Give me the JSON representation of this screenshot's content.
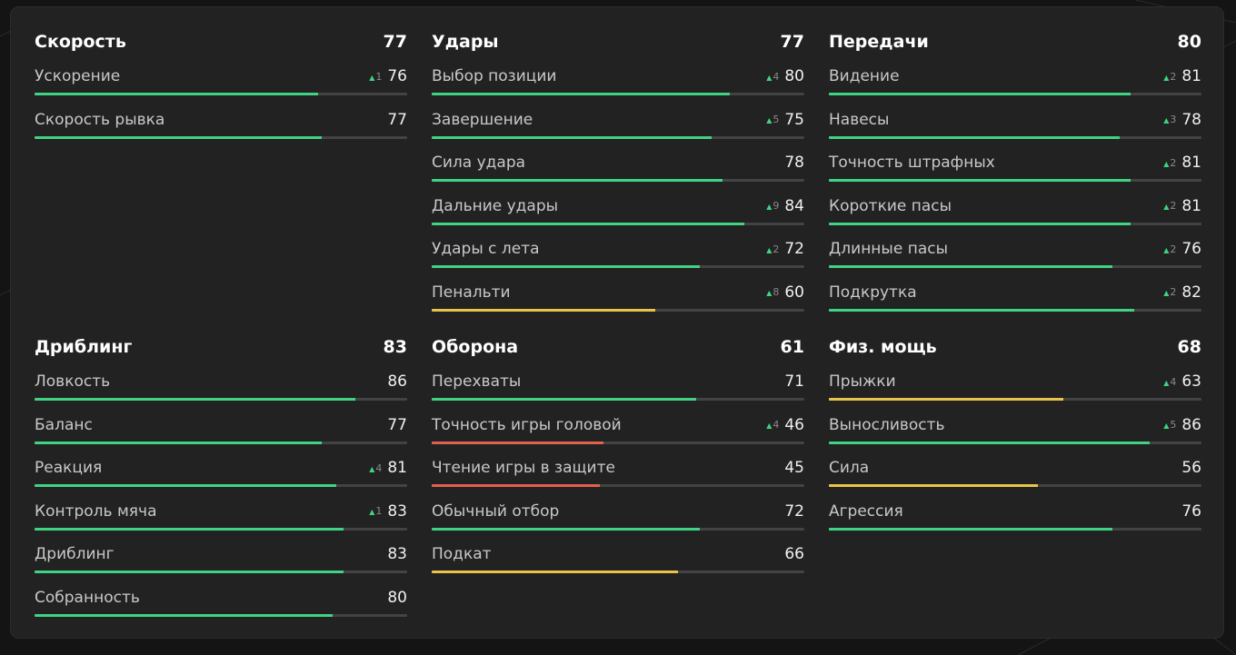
{
  "colors": {
    "high": "#3fd383",
    "mid": "#e9c44b",
    "low": "#e3614c"
  },
  "groups": [
    {
      "title": "Скорость",
      "value": "77",
      "stats": [
        {
          "name": "Ускорение",
          "delta": "1",
          "value": "76",
          "level": 0.76,
          "color": "high"
        },
        {
          "name": "Скорость рывка",
          "delta": "",
          "value": "77",
          "level": 0.77,
          "color": "high"
        }
      ]
    },
    {
      "title": "Удары",
      "value": "77",
      "stats": [
        {
          "name": "Выбор позиции",
          "delta": "4",
          "value": "80",
          "level": 0.8,
          "color": "high"
        },
        {
          "name": "Завершение",
          "delta": "5",
          "value": "75",
          "level": 0.75,
          "color": "high"
        },
        {
          "name": "Сила удара",
          "delta": "",
          "value": "78",
          "level": 0.78,
          "color": "high"
        },
        {
          "name": "Дальние удары",
          "delta": "9",
          "value": "84",
          "level": 0.84,
          "color": "high"
        },
        {
          "name": "Удары с лета",
          "delta": "2",
          "value": "72",
          "level": 0.72,
          "color": "high"
        },
        {
          "name": "Пенальти",
          "delta": "8",
          "value": "60",
          "level": 0.6,
          "color": "mid"
        }
      ]
    },
    {
      "title": "Передачи",
      "value": "80",
      "stats": [
        {
          "name": "Видение",
          "delta": "2",
          "value": "81",
          "level": 0.81,
          "color": "high"
        },
        {
          "name": "Навесы",
          "delta": "3",
          "value": "78",
          "level": 0.78,
          "color": "high"
        },
        {
          "name": "Точность штрафных",
          "delta": "2",
          "value": "81",
          "level": 0.81,
          "color": "high"
        },
        {
          "name": "Короткие пасы",
          "delta": "2",
          "value": "81",
          "level": 0.81,
          "color": "high"
        },
        {
          "name": "Длинные пасы",
          "delta": "2",
          "value": "76",
          "level": 0.76,
          "color": "high"
        },
        {
          "name": "Подкрутка",
          "delta": "2",
          "value": "82",
          "level": 0.82,
          "color": "high"
        }
      ]
    },
    {
      "title": "Дриблинг",
      "value": "83",
      "stats": [
        {
          "name": "Ловкость",
          "delta": "",
          "value": "86",
          "level": 0.86,
          "color": "high"
        },
        {
          "name": "Баланс",
          "delta": "",
          "value": "77",
          "level": 0.77,
          "color": "high"
        },
        {
          "name": "Реакция",
          "delta": "4",
          "value": "81",
          "level": 0.81,
          "color": "high"
        },
        {
          "name": "Контроль мяча",
          "delta": "1",
          "value": "83",
          "level": 0.83,
          "color": "high"
        },
        {
          "name": "Дриблинг",
          "delta": "",
          "value": "83",
          "level": 0.83,
          "color": "high"
        },
        {
          "name": "Собранность",
          "delta": "",
          "value": "80",
          "level": 0.8,
          "color": "high"
        }
      ]
    },
    {
      "title": "Оборона",
      "value": "61",
      "stats": [
        {
          "name": "Перехваты",
          "delta": "",
          "value": "71",
          "level": 0.71,
          "color": "high"
        },
        {
          "name": "Точность игры головой",
          "delta": "4",
          "value": "46",
          "level": 0.46,
          "color": "low"
        },
        {
          "name": "Чтение игры в защите",
          "delta": "",
          "value": "45",
          "level": 0.45,
          "color": "low"
        },
        {
          "name": "Обычный отбор",
          "delta": "",
          "value": "72",
          "level": 0.72,
          "color": "high"
        },
        {
          "name": "Подкат",
          "delta": "",
          "value": "66",
          "level": 0.66,
          "color": "mid"
        }
      ]
    },
    {
      "title": "Физ. мощь",
      "value": "68",
      "stats": [
        {
          "name": "Прыжки",
          "delta": "4",
          "value": "63",
          "level": 0.63,
          "color": "mid"
        },
        {
          "name": "Выносливость",
          "delta": "5",
          "value": "86",
          "level": 0.86,
          "color": "high"
        },
        {
          "name": "Сила",
          "delta": "",
          "value": "56",
          "level": 0.56,
          "color": "mid"
        },
        {
          "name": "Агрессия",
          "delta": "",
          "value": "76",
          "level": 0.76,
          "color": "high"
        }
      ]
    }
  ]
}
